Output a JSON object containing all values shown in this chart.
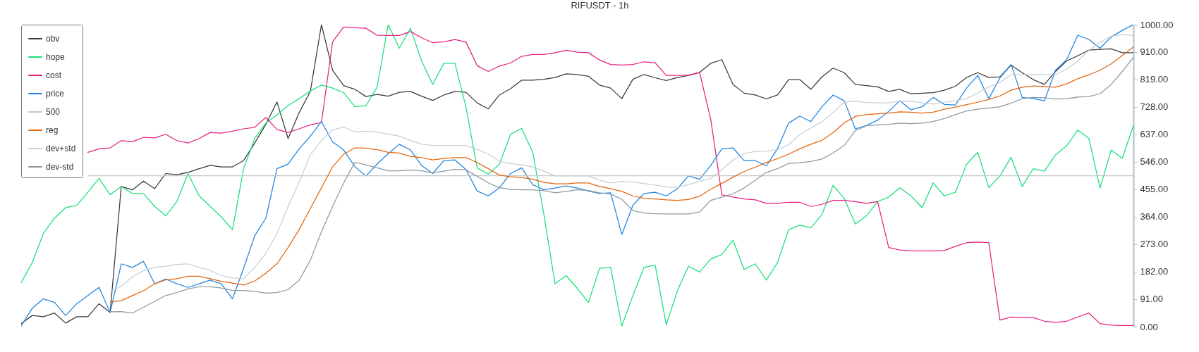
{
  "chart_data": {
    "type": "line",
    "title": "RIFUSDT - 1h",
    "categories": [
      null,
      null,
      null,
      null,
      null,
      null,
      null,
      null,
      null,
      null,
      null,
      null,
      null,
      null,
      null,
      null,
      null,
      null,
      null,
      null,
      null,
      null,
      null,
      null,
      null,
      null,
      null,
      null,
      null,
      null,
      null,
      null,
      null,
      null,
      null,
      null,
      null,
      null,
      null,
      null,
      null,
      null,
      null,
      null,
      null,
      null,
      null,
      null,
      null,
      null,
      null,
      null,
      null,
      null,
      null,
      null,
      null,
      null,
      null,
      null,
      null,
      null,
      null,
      null,
      null,
      null,
      null,
      null,
      null,
      null,
      null,
      null,
      null,
      null,
      null,
      null,
      null,
      null,
      null,
      null,
      null,
      null,
      null,
      null,
      null,
      null,
      null,
      null,
      null,
      null,
      null,
      null,
      null,
      null,
      null,
      null,
      null,
      null,
      null,
      null,
      null
    ],
    "series": [
      {
        "name": "obv",
        "color": "#3a3a3a",
        "values": [
          10,
          37,
          33,
          45,
          12,
          33,
          33,
          76,
          47,
          464,
          453,
          482,
          457,
          507,
          503,
          511,
          523,
          534,
          529,
          529,
          550,
          608,
          670,
          744,
          623,
          709,
          779,
          1000,
          849,
          798,
          786,
          762,
          769,
          763,
          776,
          779,
          763,
          749,
          767,
          779,
          776,
          741,
          721,
          767,
          788,
          816,
          816,
          819,
          825,
          837,
          835,
          829,
          800,
          790,
          755,
          819,
          835,
          824,
          815,
          825,
          832,
          842,
          872,
          884,
          802,
          773,
          767,
          754,
          767,
          818,
          818,
          786,
          827,
          856,
          841,
          802,
          798,
          794,
          779,
          786,
          771,
          773,
          775,
          783,
          796,
          825,
          841,
          825,
          827,
          866,
          841,
          818,
          802,
          845,
          880,
          897,
          916,
          918,
          920,
          907,
          907
        ]
      },
      {
        "name": "hope",
        "color": "#19e07a",
        "values": [
          146,
          212,
          309,
          359,
          394,
          402,
          445,
          491,
          437,
          464,
          441,
          441,
          398,
          367,
          414,
          507,
          433,
          398,
          363,
          321,
          523,
          623,
          674,
          701,
          732,
          755,
          780,
          800,
          790,
          775,
          728,
          732,
          793,
          1000,
          922,
          988,
          880,
          802,
          872,
          872,
          726,
          526,
          505,
          538,
          637,
          656,
          577,
          371,
          142,
          169,
          127,
          80,
          193,
          196,
          2,
          103,
          196,
          204,
          6,
          119,
          200,
          181,
          224,
          239,
          286,
          189,
          208,
          154,
          212,
          321,
          336,
          328,
          371,
          468,
          425,
          340,
          367,
          414,
          429,
          460,
          433,
          394,
          476,
          433,
          445,
          538,
          577,
          460,
          499,
          561,
          464,
          523,
          515,
          569,
          599,
          651,
          623,
          459,
          585,
          557,
          666
        ]
      },
      {
        "name": "cost",
        "color": "#e6207f",
        "values": [
          null,
          null,
          null,
          null,
          null,
          null,
          577,
          589,
          592,
          616,
          612,
          627,
          625,
          637,
          616,
          608,
          623,
          643,
          641,
          647,
          655,
          660,
          693,
          653,
          643,
          655,
          668,
          676,
          943,
          992,
          990,
          988,
          965,
          964,
          964,
          977,
          957,
          940,
          943,
          951,
          942,
          864,
          845,
          863,
          873,
          895,
          901,
          901,
          907,
          915,
          909,
          907,
          883,
          868,
          866,
          868,
          877,
          874,
          832,
          832,
          833,
          841,
          686,
          436,
          429,
          423,
          420,
          408,
          408,
          412,
          412,
          398,
          405,
          418,
          418,
          414,
          408,
          414,
          262,
          254,
          251,
          251,
          251,
          252,
          266,
          278,
          280,
          278,
          22,
          32,
          30,
          30,
          18,
          14,
          18,
          32,
          45,
          10,
          5,
          4,
          4
        ]
      },
      {
        "name": "price",
        "color": "#1f84e0",
        "values": [
          2,
          61,
          92,
          80,
          37,
          76,
          103,
          130,
          47,
          208,
          196,
          216,
          142,
          158,
          142,
          130,
          142,
          154,
          142,
          92,
          193,
          301,
          359,
          523,
          538,
          589,
          631,
          679,
          612,
          585,
          530,
          499,
          538,
          573,
          604,
          585,
          534,
          507,
          550,
          552,
          520,
          449,
          433,
          460,
          507,
          526,
          470,
          453,
          459,
          466,
          459,
          449,
          441,
          443,
          305,
          402,
          441,
          445,
          433,
          457,
          499,
          488,
          534,
          589,
          592,
          550,
          550,
          532,
          589,
          674,
          697,
          679,
          728,
          767,
          748,
          655,
          666,
          684,
          713,
          748,
          718,
          728,
          759,
          736,
          734,
          790,
          832,
          755,
          824,
          868,
          759,
          755,
          748,
          849,
          884,
          965,
          951,
          922,
          959,
          981,
          1000
        ]
      },
      {
        "name": "500",
        "color": "#c6c6c6",
        "values": [
          null,
          null,
          null,
          null,
          null,
          null,
          500,
          500,
          500,
          500,
          500,
          500,
          500,
          500,
          500,
          500,
          500,
          500,
          500,
          500,
          500,
          500,
          500,
          500,
          500,
          500,
          500,
          500,
          500,
          500,
          500,
          500,
          500,
          500,
          500,
          500,
          500,
          500,
          500,
          500,
          500,
          500,
          500,
          500,
          500,
          500,
          500,
          500,
          500,
          500,
          500,
          500,
          500,
          500,
          500,
          500,
          500,
          500,
          500,
          500,
          500,
          500,
          500,
          500,
          500,
          500,
          500,
          500,
          500,
          500,
          500,
          500,
          500,
          500,
          500,
          500,
          500,
          500,
          500,
          500,
          500,
          500,
          500,
          500,
          500,
          500,
          500,
          500,
          500,
          500,
          500,
          500,
          500,
          500,
          500,
          500,
          500,
          500,
          500,
          500,
          500
        ]
      },
      {
        "name": "reg",
        "color": "#e2650a",
        "values": [
          null,
          null,
          null,
          null,
          null,
          null,
          null,
          null,
          82,
          86,
          103,
          119,
          142,
          155,
          159,
          167,
          167,
          159,
          150,
          144,
          138,
          151,
          177,
          208,
          262,
          322,
          391,
          460,
          529,
          571,
          592,
          591,
          586,
          577,
          575,
          564,
          560,
          552,
          557,
          560,
          560,
          543,
          523,
          502,
          496,
          494,
          488,
          478,
          473,
          473,
          476,
          476,
          464,
          457,
          448,
          433,
          425,
          423,
          420,
          418,
          421,
          432,
          455,
          474,
          495,
          514,
          528,
          544,
          556,
          571,
          589,
          604,
          617,
          642,
          675,
          696,
          702,
          705,
          707,
          711,
          710,
          707,
          710,
          720,
          727,
          735,
          743,
          752,
          764,
          783,
          793,
          797,
          795,
          793,
          804,
          821,
          834,
          849,
          870,
          898,
          926
        ]
      },
      {
        "name": "dev+std",
        "color": "#c8cfd4",
        "values": [
          null,
          null,
          null,
          null,
          null,
          null,
          null,
          null,
          116,
          134,
          165,
          185,
          196,
          200,
          206,
          208,
          196,
          187,
          169,
          161,
          159,
          196,
          243,
          309,
          398,
          480,
          569,
          616,
          652,
          661,
          645,
          647,
          645,
          637,
          631,
          617,
          604,
          600,
          600,
          600,
          600,
          587,
          571,
          547,
          540,
          536,
          529,
          515,
          499,
          499,
          499,
          499,
          485,
          476,
          481,
          479,
          474,
          469,
          463,
          461,
          470,
          481,
          491,
          520,
          552,
          573,
          580,
          581,
          586,
          602,
          635,
          658,
          678,
          709,
          744,
          746,
          742,
          741,
          741,
          746,
          747,
          741,
          737,
          743,
          748,
          755,
          774,
          794,
          808,
          835,
          835,
          835,
          835,
          835,
          852,
          880,
          915,
          942,
          962,
          967,
          964
        ]
      },
      {
        "name": "dev-std",
        "color": "#8d9aa3",
        "values": [
          null,
          null,
          null,
          null,
          null,
          null,
          null,
          null,
          49,
          50,
          45,
          64,
          84,
          103,
          113,
          125,
          132,
          132,
          128,
          120,
          120,
          117,
          111,
          113,
          123,
          154,
          220,
          314,
          398,
          476,
          544,
          536,
          526,
          516,
          516,
          519,
          516,
          509,
          515,
          521,
          519,
          498,
          476,
          460,
          454,
          453,
          453,
          450,
          443,
          448,
          453,
          451,
          443,
          439,
          422,
          384,
          376,
          374,
          373,
          373,
          373,
          380,
          418,
          429,
          440,
          459,
          485,
          511,
          523,
          540,
          543,
          547,
          555,
          575,
          600,
          649,
          665,
          668,
          670,
          674,
          672,
          674,
          679,
          689,
          702,
          714,
          720,
          724,
          728,
          740,
          755,
          759,
          758,
          754,
          755,
          760,
          762,
          771,
          802,
          845,
          891
        ]
      }
    ],
    "ylim": [
      0,
      1000
    ],
    "yticks": [
      {
        "value": 0,
        "label": "0.00"
      },
      {
        "value": 91,
        "label": "91.00"
      },
      {
        "value": 182,
        "label": "182.00"
      },
      {
        "value": 273,
        "label": "273.00"
      },
      {
        "value": 364,
        "label": "364.00"
      },
      {
        "value": 455,
        "label": "455.00"
      },
      {
        "value": 546,
        "label": "546.00"
      },
      {
        "value": 637,
        "label": "637.00"
      },
      {
        "value": 728,
        "label": "728.00"
      },
      {
        "value": 819,
        "label": "819.00"
      },
      {
        "value": 910,
        "label": "910.00"
      },
      {
        "value": 1000,
        "label": "1000.00"
      }
    ],
    "tick_labels": "y",
    "legend": "top left"
  }
}
